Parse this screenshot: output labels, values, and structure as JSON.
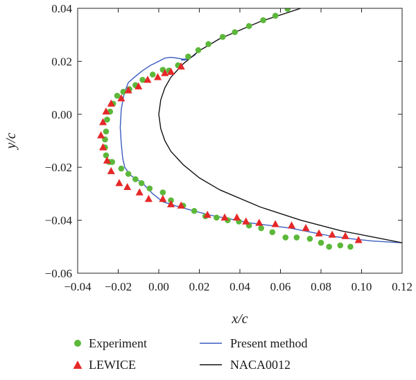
{
  "chart_data": {
    "type": "scatter",
    "xlabel": "x/c",
    "ylabel": "y/c",
    "xlim": [
      -0.04,
      0.12
    ],
    "ylim": [
      -0.06,
      0.04
    ],
    "xticks": [
      "−0.04",
      "−0.02",
      "0.00",
      "0.02",
      "0.04",
      "0.06",
      "0.08",
      "0.10",
      "0.12"
    ],
    "yticks": [
      "−0.06",
      "−0.04",
      "−0.02",
      "0.00",
      "0.02",
      "0.04"
    ],
    "legend_position": "bottom",
    "grid": false,
    "series": [
      {
        "name": "Experiment",
        "kind": "marker-circle",
        "color": "#5cb83a",
        "points": [
          [
            0.0635,
            0.0398
          ],
          [
            0.0575,
            0.0372
          ],
          [
            0.0515,
            0.0355
          ],
          [
            0.0445,
            0.0333
          ],
          [
            0.0375,
            0.031
          ],
          [
            0.0315,
            0.0292
          ],
          [
            0.0245,
            0.0265
          ],
          [
            0.0195,
            0.0242
          ],
          [
            0.0145,
            0.0218
          ],
          [
            0.0095,
            0.0185
          ],
          [
            0.005,
            0.0165
          ],
          [
            0.002,
            0.0168
          ],
          [
            -0.003,
            0.015
          ],
          [
            -0.008,
            0.013
          ],
          [
            -0.0115,
            0.011
          ],
          [
            -0.0145,
            0.0095
          ],
          [
            -0.0175,
            0.0085
          ],
          [
            -0.0205,
            0.007
          ],
          [
            -0.0225,
            0.004
          ],
          [
            -0.024,
            0.001
          ],
          [
            -0.0255,
            -0.002
          ],
          [
            -0.026,
            -0.0065
          ],
          [
            -0.0265,
            -0.0095
          ],
          [
            -0.0265,
            -0.0125
          ],
          [
            -0.026,
            -0.0155
          ],
          [
            -0.0245,
            -0.018
          ],
          [
            -0.023,
            -0.018
          ],
          [
            -0.0185,
            -0.0205
          ],
          [
            -0.015,
            -0.0225
          ],
          [
            -0.0115,
            -0.0245
          ],
          [
            -0.0085,
            -0.026
          ],
          [
            -0.0045,
            -0.028
          ],
          [
            0.002,
            -0.0295
          ],
          [
            0.006,
            -0.0325
          ],
          [
            0.012,
            -0.0345
          ],
          [
            0.0175,
            -0.0365
          ],
          [
            0.023,
            -0.0385
          ],
          [
            0.0285,
            -0.039
          ],
          [
            0.034,
            -0.04
          ],
          [
            0.0395,
            -0.0405
          ],
          [
            0.0445,
            -0.042
          ],
          [
            0.0505,
            -0.043
          ],
          [
            0.056,
            -0.0445
          ],
          [
            0.0625,
            -0.0465
          ],
          [
            0.068,
            -0.0465
          ],
          [
            0.0745,
            -0.047
          ],
          [
            0.08,
            -0.0485
          ],
          [
            0.084,
            -0.05
          ],
          [
            0.0895,
            -0.0495
          ],
          [
            0.0945,
            -0.05
          ]
        ]
      },
      {
        "name": "LEWICE",
        "kind": "marker-triangle",
        "color": "#e52828",
        "points": [
          [
            0.011,
            0.018
          ],
          [
            0.006,
            0.016
          ],
          [
            0.003,
            0.0155
          ],
          [
            -0.0005,
            0.014
          ],
          [
            -0.0055,
            0.013
          ],
          [
            -0.01,
            0.0105
          ],
          [
            -0.015,
            0.009
          ],
          [
            -0.0185,
            0.006
          ],
          [
            -0.0235,
            0.004
          ],
          [
            -0.026,
            0.001
          ],
          [
            -0.0275,
            -0.003
          ],
          [
            -0.0285,
            -0.008
          ],
          [
            -0.0275,
            -0.0125
          ],
          [
            -0.0255,
            -0.0175
          ],
          [
            -0.0235,
            -0.0215
          ],
          [
            -0.0195,
            -0.026
          ],
          [
            -0.0155,
            -0.0275
          ],
          [
            -0.0095,
            -0.0295
          ],
          [
            -0.005,
            -0.032
          ],
          [
            0.002,
            -0.032
          ],
          [
            0.006,
            -0.034
          ],
          [
            0.011,
            -0.0345
          ],
          [
            0.024,
            -0.038
          ],
          [
            0.0325,
            -0.039
          ],
          [
            0.0385,
            -0.039
          ],
          [
            0.043,
            -0.0405
          ],
          [
            0.0495,
            -0.041
          ],
          [
            0.0575,
            -0.0415
          ],
          [
            0.0655,
            -0.042
          ],
          [
            0.0725,
            -0.043
          ],
          [
            0.079,
            -0.045
          ],
          [
            0.0855,
            -0.0455
          ],
          [
            0.092,
            -0.046
          ],
          [
            0.0985,
            -0.0475
          ]
        ]
      },
      {
        "name": "Present method",
        "kind": "line",
        "color": "#3a5cc0",
        "points": [
          [
            0.011,
            0.0205
          ],
          [
            0.013,
            0.0205
          ],
          [
            0.015,
            0.021
          ],
          [
            0.018,
            0.0225
          ],
          [
            0.015,
            0.021
          ],
          [
            0.012,
            0.0208
          ],
          [
            0.009,
            0.0212
          ],
          [
            0.006,
            0.0215
          ],
          [
            0.003,
            0.0212
          ],
          [
            0.0,
            0.02
          ],
          [
            -0.004,
            0.0185
          ],
          [
            -0.008,
            0.0165
          ],
          [
            -0.012,
            0.014
          ],
          [
            -0.015,
            0.012
          ],
          [
            -0.017,
            0.008
          ],
          [
            -0.0185,
            0.002
          ],
          [
            -0.019,
            -0.005
          ],
          [
            -0.0185,
            -0.011
          ],
          [
            -0.0178,
            -0.0165
          ],
          [
            -0.0168,
            -0.02
          ],
          [
            -0.014,
            -0.023
          ],
          [
            -0.008,
            -0.026
          ],
          [
            -0.003,
            -0.03
          ],
          [
            0.002,
            -0.033
          ],
          [
            0.008,
            -0.0345
          ],
          [
            0.015,
            -0.036
          ],
          [
            0.025,
            -0.038
          ],
          [
            0.035,
            -0.0395
          ],
          [
            0.045,
            -0.041
          ],
          [
            0.055,
            -0.042
          ],
          [
            0.065,
            -0.043
          ],
          [
            0.075,
            -0.0445
          ],
          [
            0.085,
            -0.046
          ],
          [
            0.095,
            -0.047
          ],
          [
            0.105,
            -0.0478
          ],
          [
            0.115,
            -0.0483
          ],
          [
            0.12,
            -0.0485
          ]
        ]
      },
      {
        "name": "NACA0012",
        "kind": "line",
        "color": "#111111",
        "points": [
          [
            0.07,
            0.04
          ],
          [
            0.05,
            0.035
          ],
          [
            0.03,
            0.0285
          ],
          [
            0.02,
            0.024
          ],
          [
            0.012,
            0.019
          ],
          [
            0.006,
            0.014
          ],
          [
            0.003,
            0.01
          ],
          [
            0.001,
            0.0055
          ],
          [
            0.0,
            0.0
          ],
          [
            0.001,
            -0.0055
          ],
          [
            0.003,
            -0.01
          ],
          [
            0.006,
            -0.014
          ],
          [
            0.012,
            -0.019
          ],
          [
            0.02,
            -0.024
          ],
          [
            0.03,
            -0.0285
          ],
          [
            0.05,
            -0.035
          ],
          [
            0.07,
            -0.04
          ],
          [
            0.09,
            -0.044
          ],
          [
            0.11,
            -0.047
          ],
          [
            0.12,
            -0.0485
          ]
        ]
      }
    ]
  }
}
